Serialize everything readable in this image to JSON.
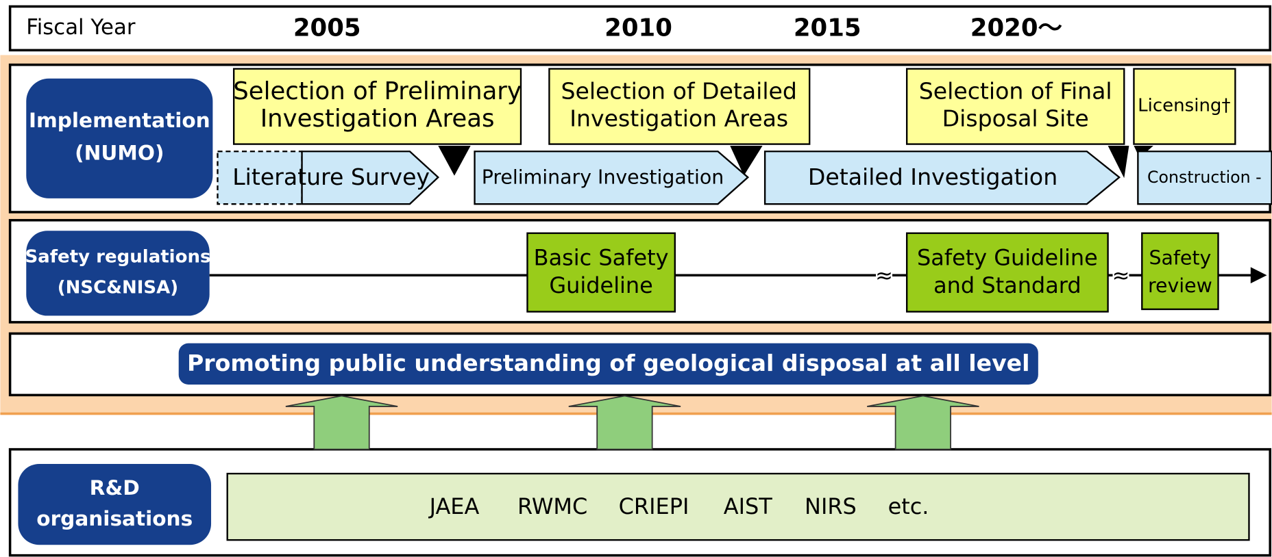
{
  "header": {
    "label": "Fiscal Year",
    "years": [
      "2005",
      "2010",
      "2015",
      "2020〜"
    ]
  },
  "implementation": {
    "label": [
      "Implementation",
      "(NUMO)"
    ],
    "milestones": [
      [
        "Selection of Preliminary",
        "Investigation Areas"
      ],
      [
        "Selection of Detailed",
        "Investigation Areas"
      ],
      [
        "Selection of Final",
        "Disposal Site"
      ],
      [
        "Licensing†"
      ]
    ],
    "phases": [
      "Literature Survey",
      "Preliminary Investigation",
      "Detailed Investigation",
      "Construction -"
    ]
  },
  "safety": {
    "label": [
      "Safety regulations",
      "(NSC&NISA)"
    ],
    "items": [
      [
        "Basic Safety",
        "Guideline"
      ],
      [
        "Safety Guideline",
        "and Standard"
      ],
      [
        "Safety",
        "review"
      ]
    ]
  },
  "public": "Promoting public understanding of geological disposal at all level",
  "rd": {
    "label": [
      "R&D",
      "organisations"
    ],
    "orgs": [
      "JAEA",
      "RWMC",
      "CRIEPI",
      "AIST",
      "NIRS",
      "etc."
    ]
  }
}
